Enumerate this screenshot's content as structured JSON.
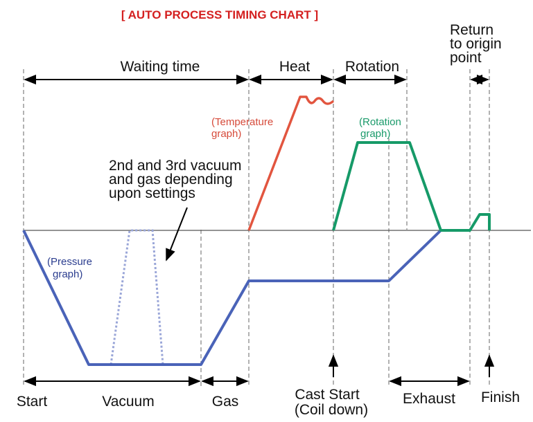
{
  "title": "[ AUTO PROCESS TIMING CHART ]",
  "phases_top": {
    "waiting_time": "Waiting time",
    "heat": "Heat",
    "rotation": "Rotation",
    "return_line1": "Return",
    "return_line2": "to origin",
    "return_line3": "point"
  },
  "phases_bottom": {
    "start": "Start",
    "vacuum": "Vacuum",
    "gas": "Gas",
    "cast_start_line1": "Cast Start",
    "cast_start_line2": "(Coil down)",
    "exhaust": "Exhaust",
    "finish": "Finish"
  },
  "annotation": {
    "line1": "2nd and 3rd vacuum",
    "line2": "and gas depending",
    "line3": "upon settings"
  },
  "graph_labels": {
    "temperature_line1": "(Temperature",
    "temperature_line2": "graph)",
    "rotation_line1": "(Rotation",
    "rotation_line2": "graph)",
    "pressure_line1": "(Pressure",
    "pressure_line2": "graph)"
  },
  "colors": {
    "title": "#d42020",
    "temperature": "#e2553f",
    "rotation": "#169a68",
    "pressure": "#4a63b8",
    "pressure_optional": "#9aa6d8",
    "temperature_label": "#d64a3a",
    "rotation_label": "#1a9a6a",
    "pressure_label": "#2b3d8f",
    "axis": "#555555",
    "guide": "#888888"
  }
}
